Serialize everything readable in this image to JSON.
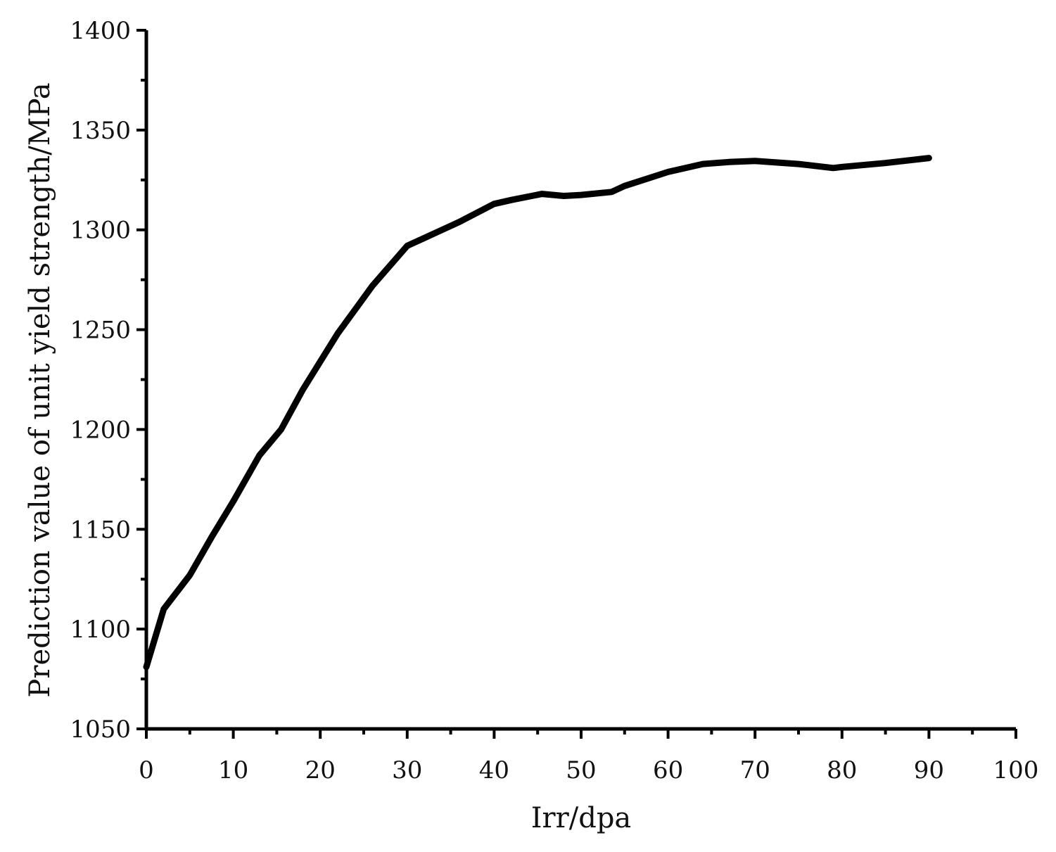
{
  "chart_data": {
    "type": "line",
    "title": "",
    "xlabel": "Irr/dpa",
    "ylabel": "Prediction value of unit yield strength/MPa",
    "xlim": [
      0,
      100
    ],
    "ylim": [
      1050,
      1400
    ],
    "x_ticks": [
      0,
      10,
      20,
      30,
      40,
      50,
      60,
      70,
      80,
      90,
      100
    ],
    "y_ticks": [
      1050,
      1100,
      1150,
      1200,
      1250,
      1300,
      1350,
      1400
    ],
    "x_tick_labels": [
      "0",
      "10",
      "20",
      "30",
      "40",
      "50",
      "60",
      "70",
      "80",
      "90",
      "100"
    ],
    "y_tick_labels": [
      "1050",
      "1100",
      "1150",
      "1200",
      "1250",
      "1300",
      "1350",
      "1400"
    ],
    "grid": false,
    "legend": "none",
    "line_color": "#000000",
    "series": [
      {
        "x": [
          0,
          2,
          5,
          7.5,
          10,
          13,
          15.5,
          18,
          22,
          26,
          30,
          32,
          36,
          40,
          42,
          45.5,
          48,
          50,
          53.5,
          55,
          60,
          64,
          67,
          70,
          75,
          79,
          80,
          85,
          90
        ],
        "y": [
          1081,
          1110,
          1127,
          1146,
          1164,
          1187,
          1200,
          1220,
          1248,
          1272,
          1292,
          1296,
          1304,
          1313,
          1315,
          1318,
          1317,
          1317.5,
          1319,
          1322,
          1329,
          1333,
          1334,
          1334.5,
          1333,
          1331,
          1331.5,
          1333.5,
          1336
        ]
      }
    ]
  }
}
